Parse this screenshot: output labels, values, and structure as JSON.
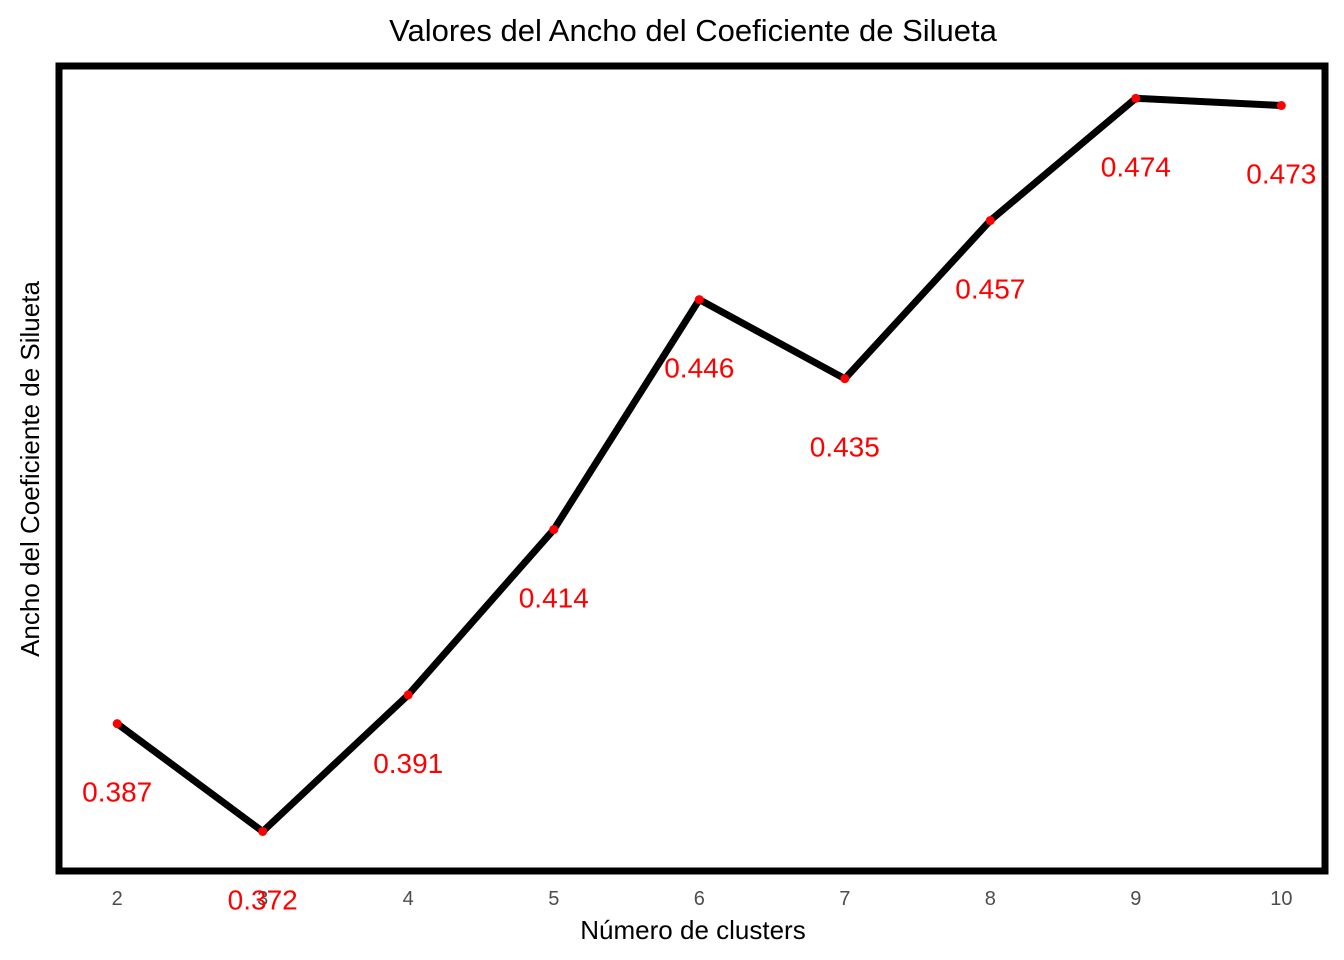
{
  "chart_data": {
    "type": "line",
    "title": "Valores del Ancho del Coeficiente de Silueta",
    "xlabel": "Número de clusters",
    "ylabel": "Ancho del Coeficiente de Silueta",
    "x": [
      2,
      3,
      4,
      5,
      6,
      7,
      8,
      9,
      10
    ],
    "x_tick_labels": [
      "2",
      "3",
      "4",
      "5",
      "6",
      "7",
      "8",
      "9",
      "10"
    ],
    "series": [
      {
        "values": [
          0.387,
          0.372,
          0.391,
          0.414,
          0.446,
          0.435,
          0.457,
          0.474,
          0.473
        ],
        "data_labels": [
          "0.387",
          "0.372",
          "0.391",
          "0.414",
          "0.446",
          "0.435",
          "0.457",
          "0.474",
          "0.473"
        ]
      }
    ],
    "xlim": [
      1.6,
      10.3
    ],
    "ylim": [
      0.3665,
      0.4785
    ],
    "y_ticks_shown": false,
    "grid": false,
    "legend": "none",
    "colors": {
      "line": "#000000",
      "points": "#ff0000",
      "data_labels": "#ff0000",
      "panel_border": "#000000",
      "background": "#ffffff"
    }
  }
}
